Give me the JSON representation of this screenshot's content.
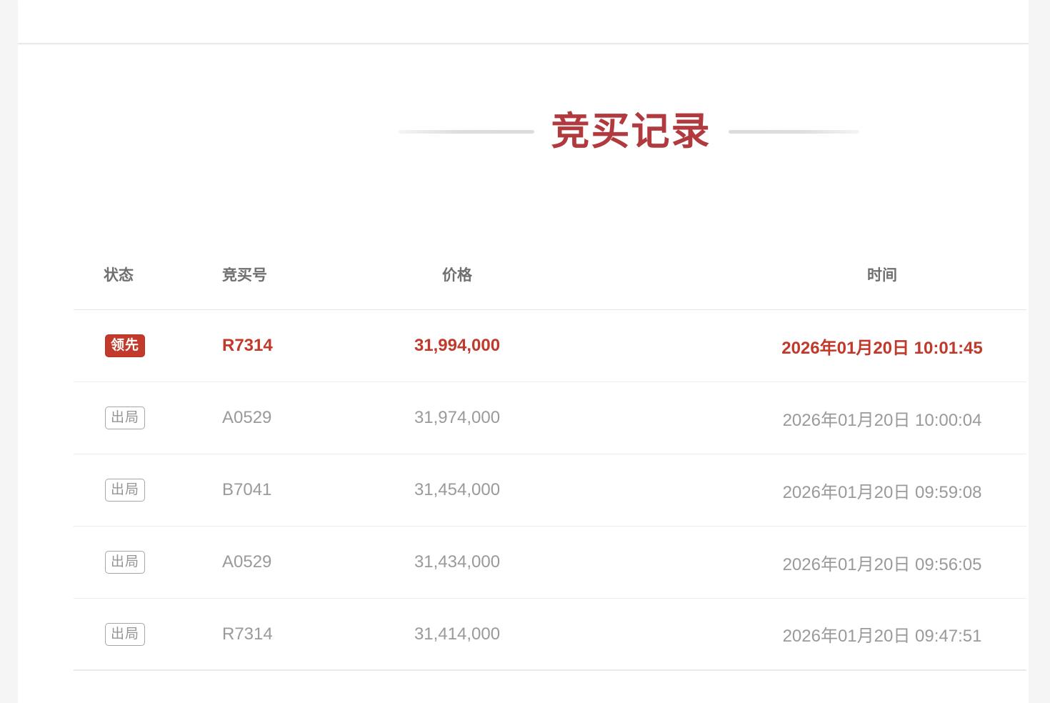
{
  "page": {
    "title": "竞买记录"
  },
  "table": {
    "headers": [
      "状态",
      "竞买号",
      "价格",
      "时间"
    ],
    "rows": [
      {
        "status": "领先",
        "bid_no": "R7314",
        "price": "31,994,000",
        "time": "2026年01月20日 10:01:45",
        "leading": true
      },
      {
        "status": "出局",
        "bid_no": "A0529",
        "price": "31,974,000",
        "time": "2026年01月20日 10:00:04",
        "leading": false
      },
      {
        "status": "出局",
        "bid_no": "B7041",
        "price": "31,454,000",
        "time": "2026年01月20日 09:59:08",
        "leading": false
      },
      {
        "status": "出局",
        "bid_no": "A0529",
        "price": "31,434,000",
        "time": "2026年01月20日 09:56:05",
        "leading": false
      },
      {
        "status": "出局",
        "bid_no": "R7314",
        "price": "31,414,000",
        "time": "2026年01月20日 09:47:51",
        "leading": false
      }
    ]
  },
  "colors": {
    "title_red": "#b13a3f",
    "leading_red": "#c1392a",
    "leading_badge_bg": "#c23a2b",
    "muted_text": "#9a9a9a",
    "header_text": "#6f6f6f",
    "divider": "#ececec",
    "page_margin_bg": "#f5f5f6",
    "card_bg": "#ffffff"
  }
}
